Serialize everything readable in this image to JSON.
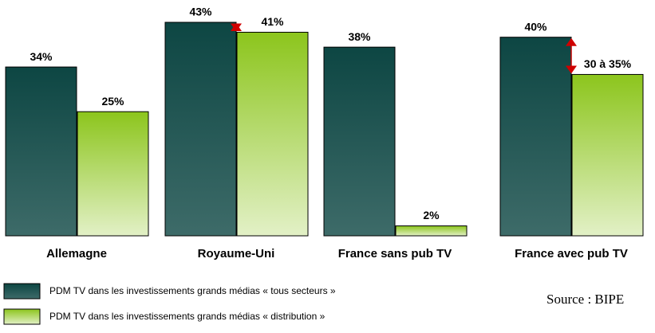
{
  "chart_data": {
    "type": "bar",
    "categories": [
      "Allemagne",
      "Royaume-Uni",
      "France sans pub TV",
      "France avec pub TV"
    ],
    "series": [
      {
        "name": "PDM TV dans les investissements grands médias « tous secteurs »",
        "color": "#0d4643",
        "values": [
          34,
          43,
          38,
          40
        ],
        "value_labels": [
          "34%",
          "43%",
          "38%",
          "40%"
        ]
      },
      {
        "name": "PDM TV dans les investissements grands médias « distribution »",
        "color": "#8cc51c",
        "values": [
          25,
          41,
          2,
          32.5
        ],
        "value_labels": [
          "25%",
          "41%",
          "2%",
          "30 à 35%"
        ]
      }
    ],
    "source": "Source : BIPE"
  }
}
